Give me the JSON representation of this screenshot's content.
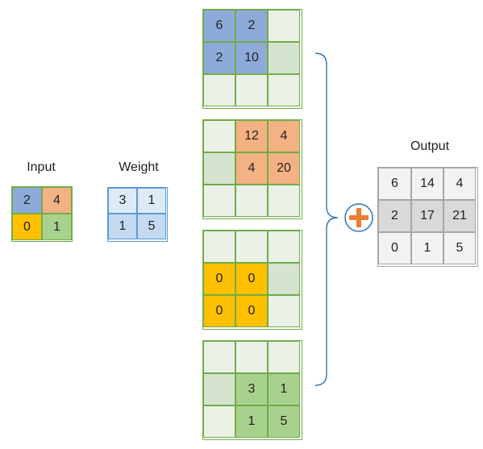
{
  "labels": {
    "input": "Input",
    "weight": "Weight",
    "output": "Output"
  },
  "colors": {
    "blue": "#8eaadb",
    "orange": "#f4b183",
    "yellow": "#ffc000",
    "green": "#a9d18e",
    "light_green": "#ebf1e6",
    "mid_green": "#d5e3cf",
    "weight_light": "#deebf7",
    "weight_mid": "#c5d9f1",
    "output_light": "#f2f2f2",
    "output_dark": "#d9d9d9",
    "plus_circle": "#2e75b6",
    "plus_sign": "#ed7d31",
    "brace": "#2e75b6"
  },
  "input": {
    "cells": [
      {
        "value": "2",
        "fill": "#8eaadb"
      },
      {
        "value": "4",
        "fill": "#f4b183"
      },
      {
        "value": "0",
        "fill": "#ffc000"
      },
      {
        "value": "1",
        "fill": "#a9d18e"
      }
    ]
  },
  "weight": {
    "cells": [
      {
        "value": "3",
        "fill": "#deebf7"
      },
      {
        "value": "1",
        "fill": "#deebf7"
      },
      {
        "value": "1",
        "fill": "#c5d9f1"
      },
      {
        "value": "5",
        "fill": "#c5d9f1"
      }
    ]
  },
  "intermediates": [
    {
      "cells": [
        {
          "value": "6",
          "fill": "#8eaadb"
        },
        {
          "value": "2",
          "fill": "#8eaadb"
        },
        {
          "value": "",
          "fill": "#ebf1e6"
        },
        {
          "value": "2",
          "fill": "#8eaadb"
        },
        {
          "value": "10",
          "fill": "#8eaadb"
        },
        {
          "value": "",
          "fill": "#d5e3cf"
        },
        {
          "value": "",
          "fill": "#ebf1e6"
        },
        {
          "value": "",
          "fill": "#ebf1e6"
        },
        {
          "value": "",
          "fill": "#ebf1e6"
        }
      ]
    },
    {
      "cells": [
        {
          "value": "",
          "fill": "#ebf1e6"
        },
        {
          "value": "12",
          "fill": "#f4b183"
        },
        {
          "value": "4",
          "fill": "#f4b183"
        },
        {
          "value": "",
          "fill": "#d5e3cf"
        },
        {
          "value": "4",
          "fill": "#f4b183"
        },
        {
          "value": "20",
          "fill": "#f4b183"
        },
        {
          "value": "",
          "fill": "#ebf1e6"
        },
        {
          "value": "",
          "fill": "#ebf1e6"
        },
        {
          "value": "",
          "fill": "#ebf1e6"
        }
      ]
    },
    {
      "cells": [
        {
          "value": "",
          "fill": "#ebf1e6"
        },
        {
          "value": "",
          "fill": "#ebf1e6"
        },
        {
          "value": "",
          "fill": "#ebf1e6"
        },
        {
          "value": "0",
          "fill": "#ffc000"
        },
        {
          "value": "0",
          "fill": "#ffc000"
        },
        {
          "value": "",
          "fill": "#d5e3cf"
        },
        {
          "value": "0",
          "fill": "#ffc000"
        },
        {
          "value": "0",
          "fill": "#ffc000"
        },
        {
          "value": "",
          "fill": "#ebf1e6"
        }
      ]
    },
    {
      "cells": [
        {
          "value": "",
          "fill": "#ebf1e6"
        },
        {
          "value": "",
          "fill": "#ebf1e6"
        },
        {
          "value": "",
          "fill": "#ebf1e6"
        },
        {
          "value": "",
          "fill": "#d5e3cf"
        },
        {
          "value": "3",
          "fill": "#a9d18e"
        },
        {
          "value": "1",
          "fill": "#a9d18e"
        },
        {
          "value": "",
          "fill": "#ebf1e6"
        },
        {
          "value": "1",
          "fill": "#a9d18e"
        },
        {
          "value": "5",
          "fill": "#a9d18e"
        }
      ]
    }
  ],
  "output": {
    "cells": [
      {
        "value": "6",
        "fill": "#f2f2f2"
      },
      {
        "value": "14",
        "fill": "#f2f2f2"
      },
      {
        "value": "4",
        "fill": "#f2f2f2"
      },
      {
        "value": "2",
        "fill": "#d9d9d9"
      },
      {
        "value": "17",
        "fill": "#d9d9d9"
      },
      {
        "value": "21",
        "fill": "#d9d9d9"
      },
      {
        "value": "0",
        "fill": "#f2f2f2"
      },
      {
        "value": "1",
        "fill": "#f2f2f2"
      },
      {
        "value": "5",
        "fill": "#f2f2f2"
      }
    ]
  },
  "operator_icon": "plus-icon",
  "connector_icon": "curly-brace-icon"
}
